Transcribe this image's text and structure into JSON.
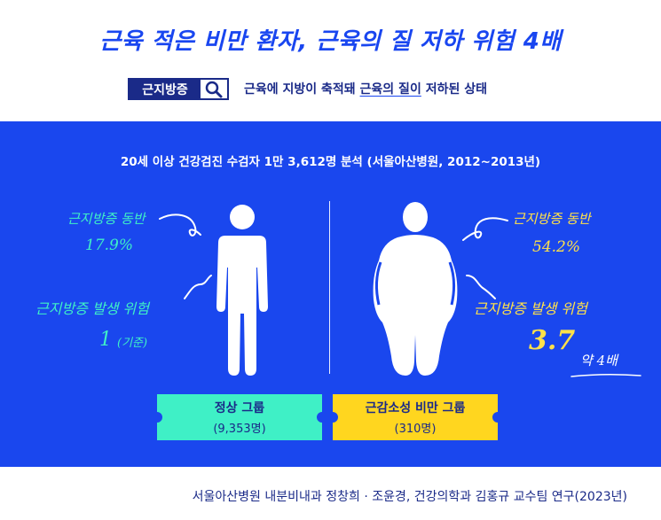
{
  "header": {
    "title": "근육 적은 비만 환자, 근육의 질 저하 위험 4배",
    "term_label": "근지방증",
    "definition_prefix": "근육에 지방이 축적돼 ",
    "definition_highlight": "근육의 질이",
    "definition_suffix": " 저하된 상태"
  },
  "main": {
    "subtitle": "20세 이상 건강검진 수검자 1만 3,612명 분석 (서울아산병원, 2012~2013년)",
    "left": {
      "accompany_label": "근지방증 동반",
      "accompany_value": "17.9%",
      "risk_label": "근지방증 발생 위험",
      "risk_value": "1",
      "risk_note": "(기준)"
    },
    "right": {
      "accompany_label": "근지방증 동반",
      "accompany_value": "54.2%",
      "risk_label": "근지방증 발생 위험",
      "risk_value": "3.7",
      "risk_note": "약 4배"
    },
    "groups": [
      {
        "name": "정상 그룹",
        "count": "(9,353명)",
        "color": "#3ff0c6"
      },
      {
        "name": "근감소성 비만 그룹",
        "count": "(310명)",
        "color": "#ffd61f"
      }
    ]
  },
  "footer": {
    "credit": "서울아산병원 내분비내과 정창희 · 조윤경, 건강의학과 김홍규 교수팀 연구(2023년)"
  },
  "icons": [
    "search-icon",
    "thin-person-icon",
    "obese-person-icon",
    "arrow-icon"
  ],
  "colors": {
    "blue_bg": "#1a47ee",
    "navy": "#1a2a88",
    "green": "#3ff0c6",
    "yellow": "#ffd61f",
    "title_blue": "#1946f0"
  }
}
